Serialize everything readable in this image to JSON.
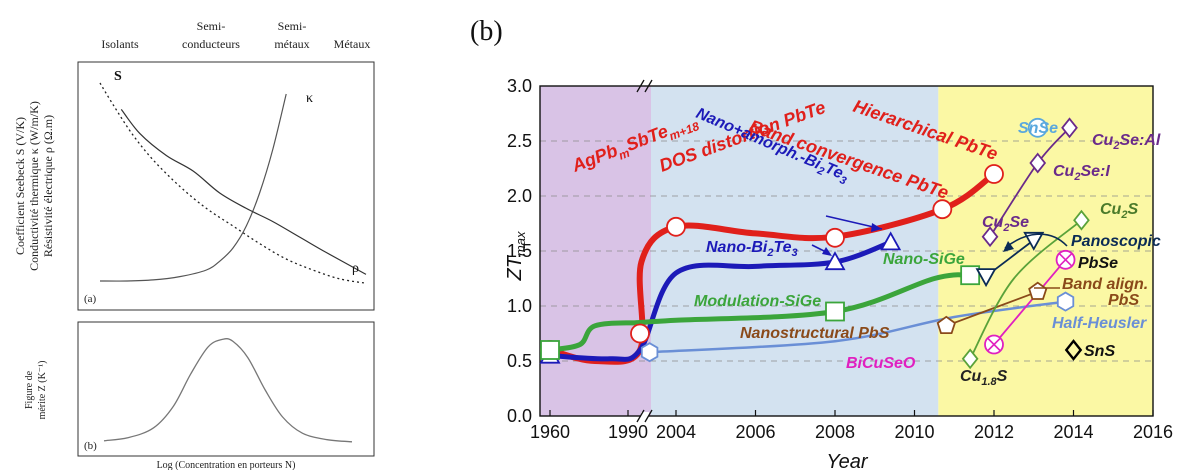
{
  "panel_a": {
    "label": "(a)",
    "regions": [
      "Isolants",
      "Semi-\nconducteurs",
      "Semi-\nmétaux",
      "Métaux"
    ],
    "ylabels": [
      "Coefficient Seebeck S (V/K)",
      "Conductivité thermique κ (W/m/K)",
      "Résistivité électrique ρ (Ω.m)"
    ],
    "curve_labels": {
      "S": "S",
      "kappa": "κ",
      "rho": "ρ"
    }
  },
  "panel_b_left": {
    "label": "(b)",
    "ylabels": [
      "Figure de",
      "mérite Z (K⁻¹)"
    ],
    "xlabel": "Log (Concentration en porteurs N)"
  },
  "panel_right_label": "(b)",
  "chart_data": [
    {
      "type": "line",
      "title": "",
      "xlabel": "",
      "ylabel": "",
      "curves": {
        "S": {
          "x": [
            0.0,
            0.05,
            0.12,
            0.2,
            0.3,
            0.4,
            0.5,
            0.6,
            0.7,
            0.8,
            0.9,
            1.0
          ],
          "y": [
            0.95,
            0.85,
            0.72,
            0.6,
            0.48,
            0.38,
            0.3,
            0.22,
            0.15,
            0.1,
            0.06,
            0.04
          ]
        },
        "kappa": {
          "x": [
            0.0,
            0.1,
            0.2,
            0.3,
            0.4,
            0.45,
            0.5,
            0.55,
            0.6,
            0.65,
            0.7
          ],
          "y": [
            0.05,
            0.05,
            0.055,
            0.07,
            0.1,
            0.14,
            0.2,
            0.3,
            0.45,
            0.65,
            0.9
          ]
        },
        "rho": {
          "x": [
            0.08,
            0.15,
            0.25,
            0.35,
            0.45,
            0.55,
            0.65,
            0.75,
            0.85,
            1.0
          ],
          "y": [
            0.83,
            0.72,
            0.62,
            0.55,
            0.45,
            0.38,
            0.32,
            0.25,
            0.18,
            0.08
          ]
        }
      }
    },
    {
      "type": "line",
      "title": "",
      "xlabel": "Log (Concentration en porteurs N)",
      "ylabel": "Figure de mérite Z (K⁻¹)",
      "x": [
        0.0,
        0.1,
        0.2,
        0.28,
        0.35,
        0.42,
        0.48,
        0.52,
        0.58,
        0.65,
        0.72,
        0.8,
        0.9,
        1.0
      ],
      "y": [
        0.03,
        0.06,
        0.15,
        0.35,
        0.65,
        0.9,
        0.97,
        0.95,
        0.8,
        0.5,
        0.25,
        0.1,
        0.04,
        0.02
      ]
    },
    {
      "type": "line",
      "title": "",
      "xlabel": "Year",
      "ylabel": "ZT max",
      "ylabel_parts": {
        "main": "ZT",
        "sub": "max"
      },
      "ylim": [
        0.0,
        3.0
      ],
      "yticks": [
        "0.0",
        "0.5",
        "1.0",
        "1.5",
        "2.0",
        "2.5",
        "3.0"
      ],
      "xticks": [
        "1960",
        "1990",
        "2004",
        "2006",
        "2008",
        "2010",
        "2012",
        "2014",
        "2016"
      ],
      "axis_break": "between 1990 and 2004",
      "grid": "dashed horizontal",
      "shaded_regions": [
        {
          "from": "1960",
          "to": "1990",
          "color": "#d9c3e6"
        },
        {
          "from": "1990",
          "to": 2010.6,
          "color": "#d3e2f0"
        },
        {
          "from": 2010.6,
          "to": 2016,
          "color": "#fbf8a4"
        }
      ],
      "series": [
        {
          "name": "AgPbmSbTem+18",
          "color": "#e0201b",
          "points": [
            [
              "1960",
              0.6
            ],
            [
              "1990",
              0.75
            ],
            [
              2004,
              1.72
            ]
          ],
          "marker": "circle"
        },
        {
          "name": "DOS distortion PbTe",
          "color": "#e0201b",
          "points": [
            [
              2008,
              1.62
            ]
          ],
          "marker": "circle"
        },
        {
          "name": "Band convergence PbTe",
          "color": "#e0201b",
          "points": [
            [
              2010.7,
              1.88
            ]
          ],
          "marker": "circle"
        },
        {
          "name": "Hierarchical PbTe",
          "color": "#e0201b",
          "points": [
            [
              2012,
              2.2
            ]
          ],
          "marker": "circle"
        },
        {
          "name": "Nano-Bi2Te3",
          "color": "#1c1ab8",
          "points": [
            [
              "1960",
              0.55
            ],
            [
              2008,
              1.4
            ]
          ],
          "marker": "triangle"
        },
        {
          "name": "Nano+amorph.-Bi2Te3",
          "color": "#1c1ab8",
          "points": [
            [
              2009.4,
              1.58
            ]
          ],
          "marker": "triangle"
        },
        {
          "name": "Modulation-SiGe",
          "color": "#3ba53b",
          "points": [
            [
              "1960",
              0.6
            ],
            [
              2008,
              0.95
            ]
          ],
          "marker": "square"
        },
        {
          "name": "Nano-SiGe",
          "color": "#3ba53b",
          "points": [
            [
              2011.4,
              1.28
            ]
          ],
          "marker": "square"
        },
        {
          "name": "Half-Heusler",
          "color": "#6a8fd6",
          "points": [
            [
              2003.5,
              0.58
            ],
            [
              2013.8,
              1.04
            ]
          ],
          "marker": "hexagon"
        },
        {
          "name": "Nanostructural PbS",
          "color": "#8a4a1a",
          "points": [
            [
              2010.8,
              0.82
            ]
          ],
          "marker": "pentagon"
        },
        {
          "name": "Band align. PbS",
          "color": "#8a4a1a",
          "points": [
            [
              2013.1,
              1.13
            ]
          ],
          "marker": "pentagon"
        },
        {
          "name": "BiCuSeO",
          "color": "#e020c0",
          "points": [
            [
              2012.0,
              0.65
            ]
          ],
          "marker": "circle-x"
        },
        {
          "name": "PbSe",
          "color": "#e020c0",
          "points": [
            [
              2013.8,
              1.42
            ]
          ],
          "marker": "circle-x"
        },
        {
          "name": "Cu1.8S",
          "color": "#5aa23a",
          "points": [
            [
              2011.4,
              0.52
            ]
          ],
          "marker": "diamond"
        },
        {
          "name": "Cu2S",
          "color": "#5aa23a",
          "points": [
            [
              2014.2,
              1.78
            ]
          ],
          "marker": "diamond"
        },
        {
          "name": "Panoscopic",
          "color": "#0b2b55",
          "points": [
            [
              2011.8,
              1.27
            ],
            [
              2013.0,
              1.6
            ]
          ],
          "marker": "triangle-down"
        },
        {
          "name": "Cu2Se",
          "color": "#6a2a8a",
          "points": [
            [
              2011.9,
              1.63
            ]
          ],
          "marker": "diamond"
        },
        {
          "name": "Cu2Se:I",
          "color": "#6a2a8a",
          "points": [
            [
              2013.1,
              2.3
            ]
          ],
          "marker": "diamond"
        },
        {
          "name": "Cu2Se:Al",
          "color": "#6a2a8a",
          "points": [
            [
              2013.9,
              2.62
            ]
          ],
          "marker": "diamond"
        },
        {
          "name": "SnSe",
          "color": "#5aa8dd",
          "points": [
            [
              2013.1,
              2.62
            ]
          ],
          "marker": "circle"
        },
        {
          "name": "SnS",
          "color": "#000000",
          "points": [
            [
              2014.0,
              0.6
            ]
          ],
          "marker": "diamond"
        }
      ],
      "labels": {
        "AgPb": "AgPb",
        "AgPb_sub1": "m",
        "AgPb_mid": "SbTe",
        "AgPb_sub2": "m+18",
        "dos": "DOS distortion PbTe",
        "band": "Band convergence PbTe",
        "hier": "Hierarchical PbTe",
        "nanoamorph": "Nano+amorph.-Bi",
        "nanoamorph_sub": "2",
        "nanoamorph_end": "Te",
        "nanoamorph_sub2": "3",
        "nanobi": "Nano-Bi",
        "nanobi_sub": "2",
        "nanobi_end": "Te",
        "nanobi_sub2": "3",
        "nanosige": "Nano-SiGe",
        "modsige": "Modulation-SiGe",
        "nanopbs": "Nanostructural PbS",
        "halfheusler": "Half-Heusler",
        "bicuseo": "BiCuSeO",
        "cu18s": "Cu",
        "cu18s_sub": "1.8",
        "cu18s_end": "S",
        "snse": "SnSe",
        "cu2seal": "Cu",
        "cu2seal_sub": "2",
        "cu2seal_end": "Se:Al",
        "cu2sei": "Cu",
        "cu2sei_sub": "2",
        "cu2sei_end": "Se:I",
        "cu2se": "Cu",
        "cu2se_sub": "2",
        "cu2se_end": "Se",
        "cu2s": "Cu",
        "cu2s_sub": "2",
        "cu2s_end": "S",
        "panoscopic": "Panoscopic",
        "pbse": "PbSe",
        "bandalign": "Band align.",
        "bandalign2": "PbS",
        "sns": "SnS"
      }
    }
  ]
}
